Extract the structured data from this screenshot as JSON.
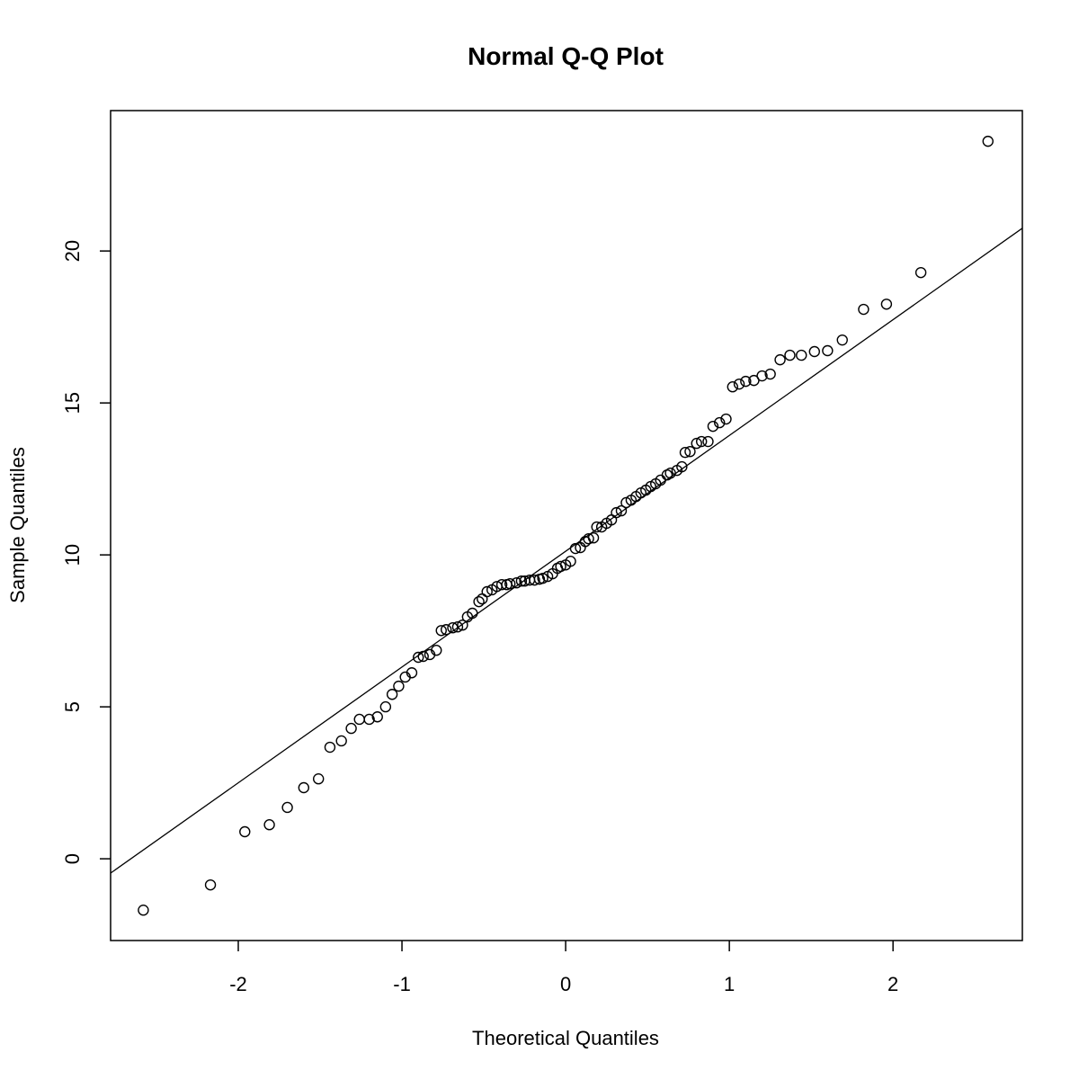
{
  "chart_data": {
    "type": "scatter",
    "title": "Normal Q-Q Plot",
    "x_label": "Theoretical Quantiles",
    "y_label": "Sample Quantiles",
    "x": [
      -2.58,
      -2.17,
      -1.96,
      -1.81,
      -1.7,
      -1.6,
      -1.51,
      -1.44,
      -1.37,
      -1.31,
      -1.26,
      -1.2,
      -1.15,
      -1.1,
      -1.06,
      -1.02,
      -0.98,
      -0.94,
      -0.9,
      -0.87,
      -0.83,
      -0.79,
      -0.76,
      -0.73,
      -0.69,
      -0.66,
      -0.63,
      -0.6,
      -0.57,
      -0.53,
      -0.51,
      -0.48,
      -0.45,
      -0.42,
      -0.39,
      -0.36,
      -0.34,
      -0.3,
      -0.27,
      -0.25,
      -0.22,
      -0.19,
      -0.16,
      -0.14,
      -0.11,
      -0.08,
      -0.05,
      -0.03,
      0.0,
      0.03,
      0.06,
      0.09,
      0.12,
      0.14,
      0.17,
      0.19,
      0.22,
      0.25,
      0.28,
      0.31,
      0.34,
      0.37,
      0.4,
      0.43,
      0.46,
      0.49,
      0.52,
      0.55,
      0.58,
      0.62,
      0.64,
      0.68,
      0.71,
      0.73,
      0.76,
      0.8,
      0.83,
      0.87,
      0.9,
      0.94,
      0.98,
      1.02,
      1.06,
      1.1,
      1.15,
      1.2,
      1.25,
      1.31,
      1.37,
      1.44,
      1.52,
      1.6,
      1.69,
      1.82,
      1.96,
      2.17,
      2.58
    ],
    "values": [
      -1.69,
      -0.86,
      0.89,
      1.12,
      1.69,
      2.34,
      2.63,
      3.67,
      3.88,
      4.29,
      4.59,
      4.59,
      4.67,
      5.0,
      5.41,
      5.68,
      5.98,
      6.12,
      6.63,
      6.66,
      6.72,
      6.86,
      7.51,
      7.54,
      7.6,
      7.63,
      7.69,
      7.96,
      8.08,
      8.46,
      8.55,
      8.79,
      8.85,
      8.96,
      9.02,
      9.02,
      9.05,
      9.08,
      9.14,
      9.14,
      9.17,
      9.17,
      9.2,
      9.23,
      9.29,
      9.38,
      9.56,
      9.62,
      9.67,
      9.79,
      10.21,
      10.24,
      10.44,
      10.53,
      10.56,
      10.92,
      10.92,
      11.04,
      11.15,
      11.39,
      11.45,
      11.72,
      11.8,
      11.92,
      12.04,
      12.13,
      12.25,
      12.34,
      12.46,
      12.63,
      12.69,
      12.78,
      12.9,
      13.37,
      13.4,
      13.67,
      13.73,
      13.73,
      14.23,
      14.35,
      14.47,
      15.53,
      15.62,
      15.71,
      15.74,
      15.89,
      15.95,
      16.42,
      16.57,
      16.57,
      16.69,
      16.72,
      17.07,
      18.08,
      18.25,
      19.29,
      23.61
    ],
    "color": "#000000",
    "qqline": {
      "intercept": 10.12,
      "slope": 3.81
    },
    "xlim": [
      -2.78,
      2.79
    ],
    "ylim": [
      -2.69,
      24.62
    ],
    "xticks": [
      -2,
      -1,
      0,
      1,
      2
    ],
    "yticks": [
      0,
      5,
      10,
      15,
      20
    ]
  }
}
